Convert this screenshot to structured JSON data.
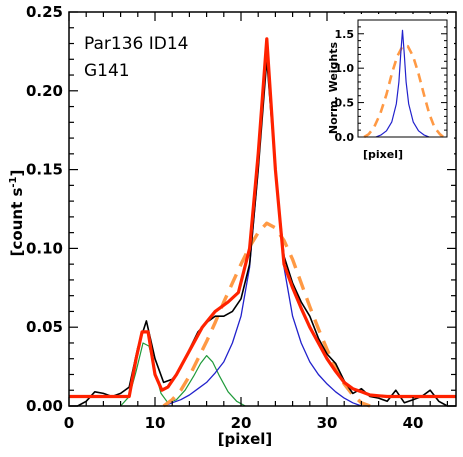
{
  "chart_data": [
    {
      "type": "line",
      "xlabel": "[pixel]",
      "ylabel": "[count s",
      "ylabel_sup": "-1",
      "ylabel_end": "]",
      "xlim": [
        0,
        45
      ],
      "ylim": [
        0,
        0.25
      ],
      "xticks": [
        0,
        10,
        20,
        30,
        40
      ],
      "xtick_labels": [
        "0",
        "10",
        "20",
        "30",
        "40"
      ],
      "yticks": [
        0,
        0.05,
        0.1,
        0.15,
        0.2,
        0.25
      ],
      "ytick_labels": [
        "0.00",
        "0.05",
        "0.10",
        "0.15",
        "0.20",
        "0.25"
      ],
      "annotations": [
        "Par136 ID14",
        "G141"
      ],
      "series": [
        {
          "color": "#000000",
          "style": "solid",
          "width": 1.6,
          "points": [
            [
              0,
              0.0
            ],
            [
              1,
              0.0
            ],
            [
              2,
              0.003
            ],
            [
              3,
              0.009
            ],
            [
              4,
              0.008
            ],
            [
              5,
              0.006
            ],
            [
              6,
              0.008
            ],
            [
              7,
              0.012
            ],
            [
              8,
              0.037
            ],
            [
              9,
              0.054
            ],
            [
              10,
              0.03
            ],
            [
              11,
              0.015
            ],
            [
              12,
              0.017
            ],
            [
              13,
              0.024
            ],
            [
              14,
              0.036
            ],
            [
              15,
              0.047
            ],
            [
              16,
              0.053
            ],
            [
              17,
              0.057
            ],
            [
              18,
              0.057
            ],
            [
              19,
              0.06
            ],
            [
              20,
              0.068
            ],
            [
              21,
              0.09
            ],
            [
              22,
              0.15
            ],
            [
              23,
              0.22
            ],
            [
              24,
              0.15
            ],
            [
              25,
              0.095
            ],
            [
              26,
              0.078
            ],
            [
              27,
              0.066
            ],
            [
              28,
              0.057
            ],
            [
              29,
              0.043
            ],
            [
              30,
              0.033
            ],
            [
              31,
              0.027
            ],
            [
              32,
              0.016
            ],
            [
              33,
              0.008
            ],
            [
              34,
              0.011
            ],
            [
              35,
              0.006
            ],
            [
              36,
              0.005
            ],
            [
              37,
              0.003
            ],
            [
              38,
              0.01
            ],
            [
              39,
              0.002
            ],
            [
              40,
              0.004
            ],
            [
              41,
              0.006
            ],
            [
              42,
              0.01
            ],
            [
              43,
              0.003
            ],
            [
              44,
              0.0
            ],
            [
              45,
              0.0
            ]
          ]
        },
        {
          "color": "#ff2200",
          "style": "solid",
          "width": 3.2,
          "points": [
            [
              0,
              0.006
            ],
            [
              7,
              0.006
            ],
            [
              7.8,
              0.03
            ],
            [
              8.5,
              0.047
            ],
            [
              9.2,
              0.047
            ],
            [
              10,
              0.02
            ],
            [
              10.8,
              0.01
            ],
            [
              11.5,
              0.012
            ],
            [
              12.5,
              0.02
            ],
            [
              14,
              0.035
            ],
            [
              15.5,
              0.05
            ],
            [
              17,
              0.06
            ],
            [
              18.5,
              0.066
            ],
            [
              19.7,
              0.072
            ],
            [
              21,
              0.1
            ],
            [
              22,
              0.16
            ],
            [
              23,
              0.233
            ],
            [
              24,
              0.15
            ],
            [
              25,
              0.09
            ],
            [
              26,
              0.075
            ],
            [
              27,
              0.062
            ],
            [
              28,
              0.05
            ],
            [
              29,
              0.04
            ],
            [
              30,
              0.03
            ],
            [
              31,
              0.022
            ],
            [
              32,
              0.015
            ],
            [
              33,
              0.011
            ],
            [
              34,
              0.009
            ],
            [
              35,
              0.007
            ],
            [
              37,
              0.006
            ],
            [
              45,
              0.006
            ]
          ]
        },
        {
          "color": "#ff9944",
          "style": "dashed",
          "width": 3.4,
          "points": [
            [
              11,
              0.0
            ],
            [
              12,
              0.004
            ],
            [
              13,
              0.01
            ],
            [
              14,
              0.019
            ],
            [
              15,
              0.03
            ],
            [
              16,
              0.041
            ],
            [
              17,
              0.053
            ],
            [
              18,
              0.066
            ],
            [
              19,
              0.078
            ],
            [
              20,
              0.09
            ],
            [
              21,
              0.101
            ],
            [
              22,
              0.11
            ],
            [
              23,
              0.116
            ],
            [
              24,
              0.113
            ],
            [
              25,
              0.105
            ],
            [
              26,
              0.093
            ],
            [
              27,
              0.078
            ],
            [
              28,
              0.063
            ],
            [
              29,
              0.049
            ],
            [
              30,
              0.036
            ],
            [
              31,
              0.024
            ],
            [
              32,
              0.014
            ],
            [
              33,
              0.007
            ],
            [
              34,
              0.002
            ],
            [
              35,
              0.0
            ]
          ]
        },
        {
          "color": "#2222cc",
          "style": "solid",
          "width": 1.3,
          "points": [
            [
              11,
              0.0
            ],
            [
              12,
              0.002
            ],
            [
              13,
              0.004
            ],
            [
              14,
              0.007
            ],
            [
              15,
              0.011
            ],
            [
              16,
              0.015
            ],
            [
              17,
              0.021
            ],
            [
              18,
              0.028
            ],
            [
              19,
              0.04
            ],
            [
              20,
              0.057
            ],
            [
              21,
              0.088
            ],
            [
              22,
              0.15
            ],
            [
              23,
              0.232
            ],
            [
              24,
              0.15
            ],
            [
              25,
              0.088
            ],
            [
              26,
              0.057
            ],
            [
              27,
              0.04
            ],
            [
              28,
              0.028
            ],
            [
              29,
              0.02
            ],
            [
              30,
              0.014
            ],
            [
              31,
              0.009
            ],
            [
              32,
              0.005
            ],
            [
              33,
              0.002
            ],
            [
              34,
              0.0
            ]
          ]
        },
        {
          "color": "#1f9a3a",
          "style": "solid",
          "width": 1.2,
          "points": [
            [
              6,
              0.0
            ],
            [
              7,
              0.006
            ],
            [
              7.8,
              0.022
            ],
            [
              8.6,
              0.04
            ],
            [
              9.3,
              0.038
            ],
            [
              10,
              0.022
            ],
            [
              10.7,
              0.008
            ],
            [
              11.5,
              0.002
            ],
            [
              12.5,
              0.004
            ],
            [
              13.5,
              0.01
            ],
            [
              14.5,
              0.019
            ],
            [
              15.3,
              0.027
            ],
            [
              16,
              0.032
            ],
            [
              16.7,
              0.028
            ],
            [
              17.5,
              0.019
            ],
            [
              18.5,
              0.009
            ],
            [
              19.5,
              0.003
            ],
            [
              20.5,
              0.0
            ]
          ]
        }
      ]
    },
    {
      "type": "line",
      "xlabel": "[pixel]",
      "ylabel": "Norm. Weights",
      "xlim": [
        0,
        1
      ],
      "ylim": [
        0,
        1.7
      ],
      "yticks": [
        0.0,
        0.5,
        1.0,
        1.5
      ],
      "ytick_labels": [
        "0.0",
        "0.5",
        "1.0",
        "1.5"
      ],
      "series": [
        {
          "color": "#ff9944",
          "style": "dashed",
          "width": 2.6,
          "points": [
            [
              0.07,
              0.0
            ],
            [
              0.12,
              0.04
            ],
            [
              0.18,
              0.14
            ],
            [
              0.25,
              0.34
            ],
            [
              0.32,
              0.62
            ],
            [
              0.38,
              0.92
            ],
            [
              0.44,
              1.17
            ],
            [
              0.5,
              1.32
            ],
            [
              0.56,
              1.32
            ],
            [
              0.62,
              1.17
            ],
            [
              0.68,
              0.92
            ],
            [
              0.74,
              0.62
            ],
            [
              0.8,
              0.34
            ],
            [
              0.86,
              0.14
            ],
            [
              0.92,
              0.04
            ],
            [
              0.96,
              0.0
            ]
          ]
        },
        {
          "color": "#2222cc",
          "style": "solid",
          "width": 1.2,
          "points": [
            [
              0.2,
              0.0
            ],
            [
              0.26,
              0.03
            ],
            [
              0.32,
              0.09
            ],
            [
              0.38,
              0.22
            ],
            [
              0.43,
              0.48
            ],
            [
              0.46,
              0.8
            ],
            [
              0.48,
              1.2
            ],
            [
              0.5,
              1.55
            ],
            [
              0.52,
              1.2
            ],
            [
              0.54,
              0.8
            ],
            [
              0.57,
              0.48
            ],
            [
              0.62,
              0.22
            ],
            [
              0.68,
              0.09
            ],
            [
              0.74,
              0.03
            ],
            [
              0.8,
              0.0
            ]
          ]
        }
      ]
    }
  ]
}
